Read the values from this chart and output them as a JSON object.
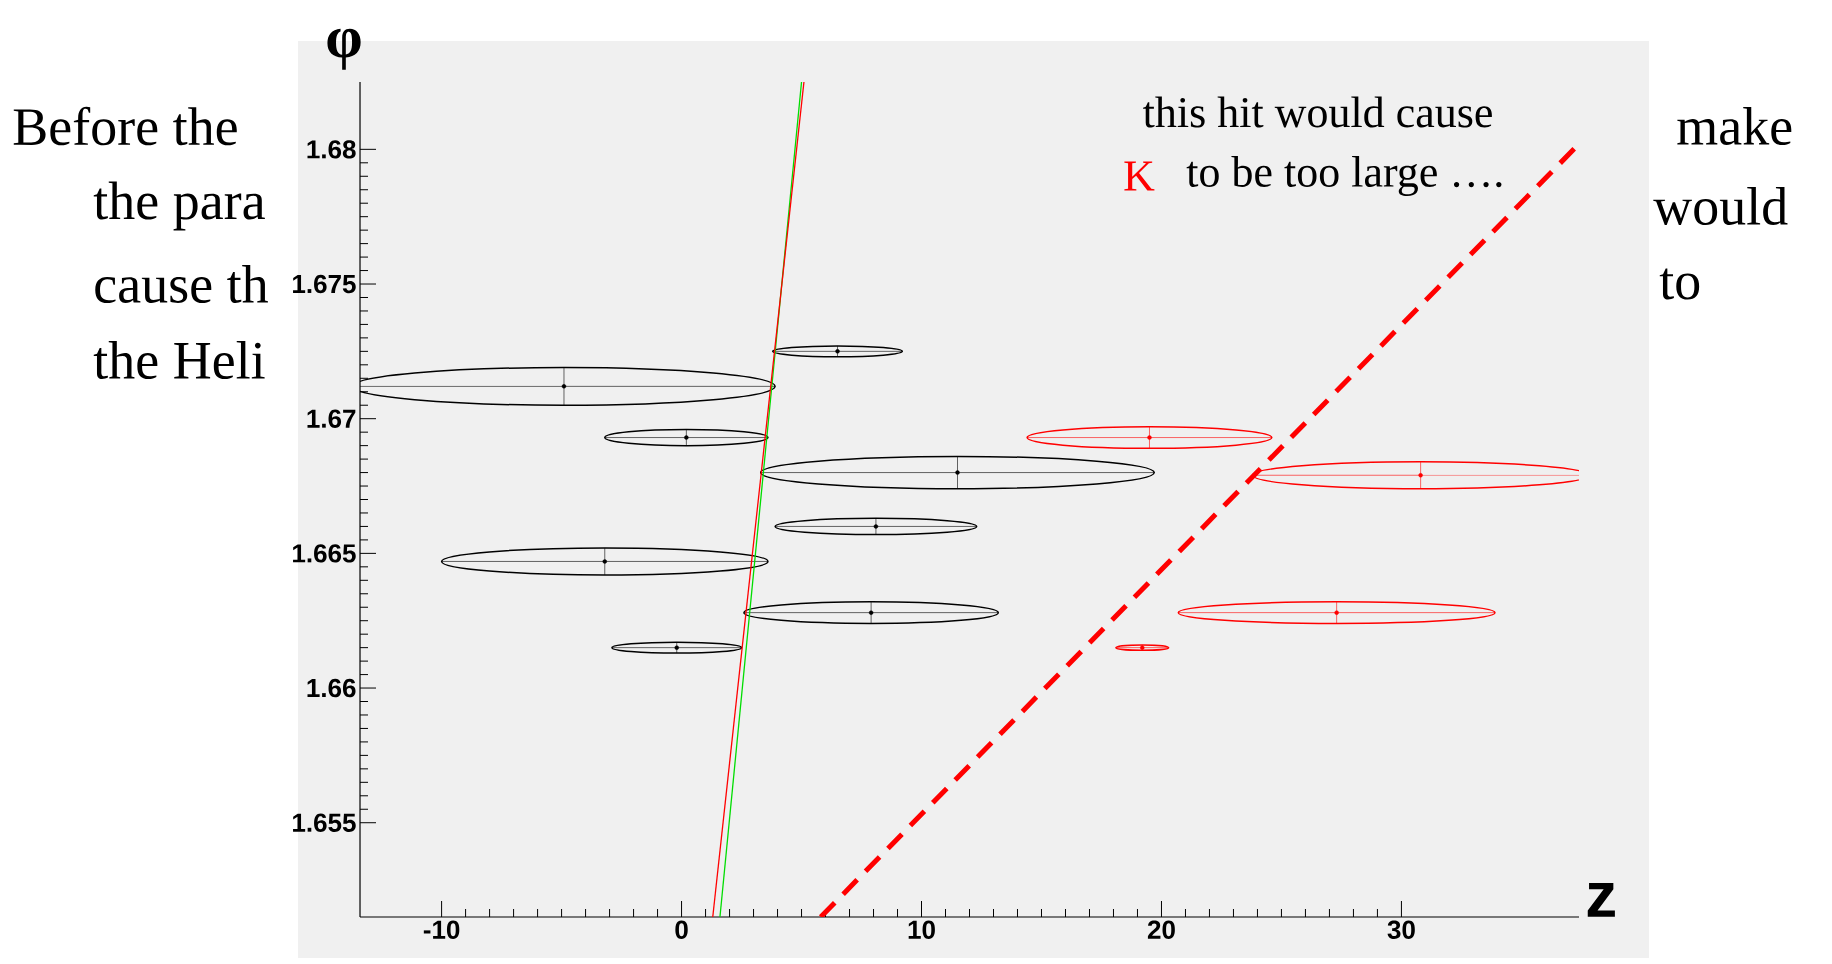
{
  "chart_data": {
    "type": "scatter",
    "xlabel": "z",
    "ylabel": "φ",
    "xlim": [
      -13.4,
      37.4
    ],
    "ylim": [
      1.6515,
      1.6825
    ],
    "xticks": [
      -10,
      0,
      10,
      20,
      30
    ],
    "yticks": [
      1.655,
      1.66,
      1.665,
      1.67,
      1.675,
      1.68
    ],
    "series": [
      {
        "type": "scatter",
        "color": "#000000",
        "x": [
          6.5,
          -4.9,
          0.2,
          11.5,
          8.1,
          -3.2,
          7.9,
          -0.2
        ],
        "values": [
          1.6725,
          1.6712,
          1.6693,
          1.668,
          1.666,
          1.6647,
          1.6628,
          1.6615
        ],
        "xerrors": [
          2.7,
          8.8,
          3.4,
          8.2,
          4.2,
          6.8,
          5.3,
          2.7
        ],
        "errors": [
          0.0002,
          0.0007,
          0.0003,
          0.0006,
          0.0003,
          0.0005,
          0.0004,
          0.0002
        ]
      },
      {
        "type": "scatter",
        "color": "#ff0000",
        "x": [
          19.5,
          30.8,
          27.3,
          19.2
        ],
        "values": [
          1.6693,
          1.6679,
          1.6628,
          1.6615
        ],
        "xerrors": [
          5.1,
          7.0,
          6.6,
          1.1
        ],
        "errors": [
          0.0004,
          0.0005,
          0.0004,
          0.0001
        ]
      },
      {
        "type": "line",
        "color": "#00dd00",
        "x": [
          1.6,
          5.0
        ],
        "values": [
          1.6515,
          1.6825
        ]
      },
      {
        "type": "line",
        "color": "#ff0000",
        "x": [
          1.3,
          5.1
        ],
        "values": [
          1.6515,
          1.6825
        ]
      },
      {
        "type": "line",
        "color": "#ff0000",
        "line_style": "dashed",
        "x": [
          5.8,
          37.4
        ],
        "values": [
          1.6515,
          1.6802
        ]
      }
    ],
    "annotations": [
      "Before the",
      "make",
      "the para",
      "would",
      "cause th",
      "to",
      "the Heli",
      "this hit would cause",
      "K",
      "to be too large …."
    ]
  }
}
